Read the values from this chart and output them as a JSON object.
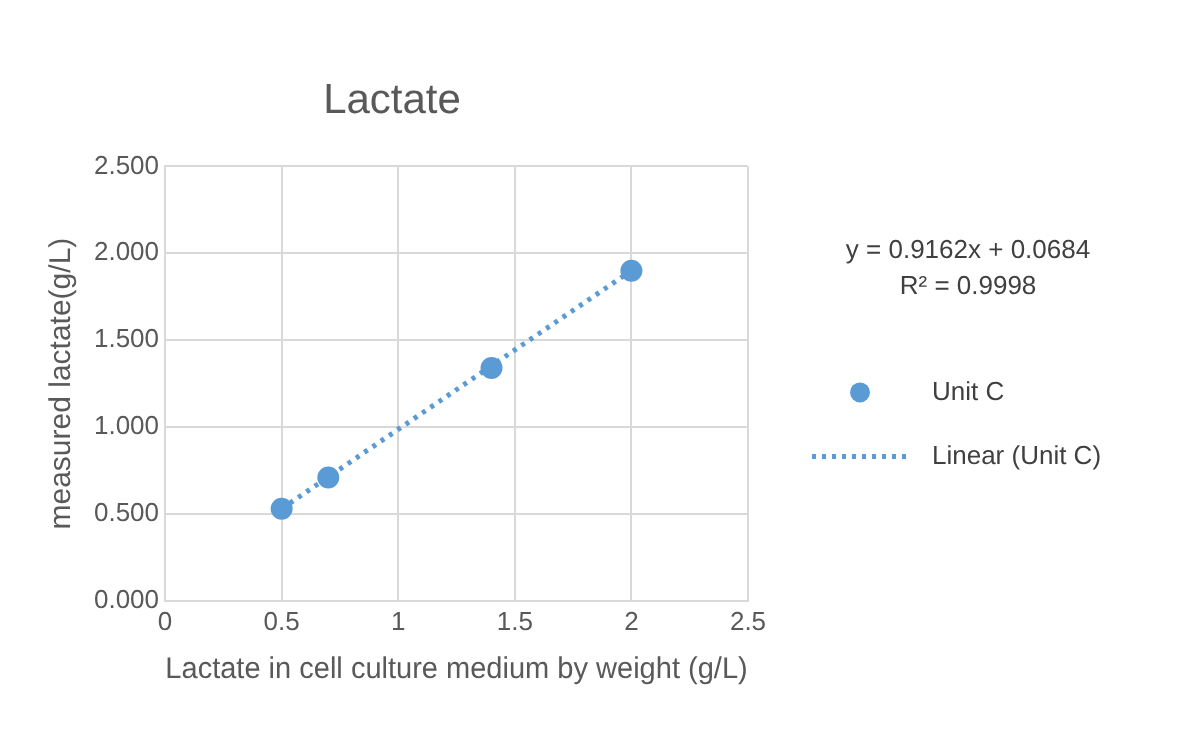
{
  "chart_data": {
    "type": "scatter",
    "title": "Lactate",
    "xlabel": "Lactate in cell culture medium by weight (g/L)",
    "ylabel": "measured lactate(g/L)",
    "series": [
      {
        "name": "Unit C",
        "color": "#5b9bd5",
        "x": [
          0.5,
          0.7,
          1.4,
          2.0
        ],
        "values": [
          0.53,
          0.71,
          1.34,
          1.9
        ],
        "marker": "circle"
      },
      {
        "name": "Linear (Unit C)",
        "type": "line",
        "color": "#5b9bd5",
        "x": [
          0.5,
          2.0
        ],
        "values": [
          0.53,
          1.9
        ],
        "line_style": "dotted",
        "marker": "none"
      }
    ],
    "xlim": [
      0,
      2.5
    ],
    "xticks": [
      0,
      0.5,
      1,
      1.5,
      2,
      2.5
    ],
    "ylim": [
      0,
      2.5
    ],
    "yticks": [
      {
        "value": 0,
        "label": "0.000"
      },
      {
        "value": 0.5,
        "label": "0.500"
      },
      {
        "value": 1,
        "label": "1.000"
      },
      {
        "value": 1.5,
        "label": "1.500"
      },
      {
        "value": 2,
        "label": "2.000"
      },
      {
        "value": 2.5,
        "label": "2.500"
      }
    ],
    "grid": true,
    "legend": "right",
    "annotations": [
      "y = 0.9162x + 0.0684",
      "R² = 0.9998"
    ]
  }
}
